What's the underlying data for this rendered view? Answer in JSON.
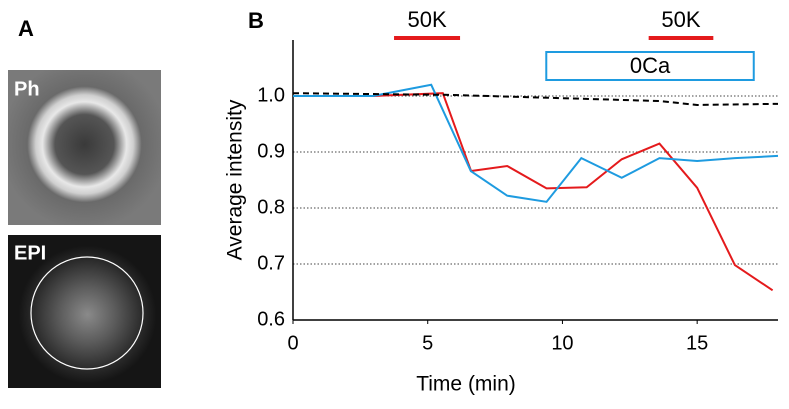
{
  "figure": {
    "panel_a": {
      "label": "A",
      "images": [
        "Ph",
        "EPI"
      ]
    }
  },
  "chart_data": {
    "type": "line",
    "panel_label": "B",
    "x_label": "Time (min)",
    "y_label": "Average intensity",
    "xlim": [
      0,
      18
    ],
    "xticks": [
      0,
      5,
      10,
      15
    ],
    "ylim": [
      0.6,
      1.1
    ],
    "yticks": [
      {
        "value": 0.6,
        "label": "0.6"
      },
      {
        "value": 0.7,
        "label": "0.7"
      },
      {
        "value": 0.8,
        "label": "0.8"
      },
      {
        "value": 0.9,
        "label": "0.9"
      },
      {
        "value": 1,
        "label": "1.0"
      }
    ],
    "grid": true,
    "series": [
      {
        "color": "#e41a1c",
        "dash": false,
        "x": [
          0,
          2.96,
          5.56,
          6.61,
          7.95,
          9.41,
          10.9,
          12.2,
          13.6,
          15.0,
          16.4,
          17.8
        ],
        "values": [
          1.0,
          1.0,
          1.005,
          0.866,
          0.875,
          0.835,
          0.837,
          0.887,
          0.915,
          0.836,
          0.698,
          0.653
        ]
      },
      {
        "color": "#1e9be0",
        "dash": false,
        "x": [
          0,
          2.96,
          5.13,
          6.6,
          7.95,
          9.41,
          10.7,
          12.2,
          13.6,
          15.0,
          16.4,
          18.0
        ],
        "values": [
          1.0,
          1.0,
          1.02,
          0.866,
          0.822,
          0.811,
          0.889,
          0.854,
          0.889,
          0.884,
          0.889,
          0.893
        ]
      },
      {
        "color": "#000000",
        "dash": true,
        "x": [
          0,
          5.8,
          13.6,
          15.0,
          18.0
        ],
        "values": [
          1.005,
          1.002,
          0.991,
          0.984,
          0.986
        ]
      }
    ],
    "annotations": [
      {
        "text": "50K",
        "kind": "bar",
        "start": 3.75,
        "end": 6.2,
        "color": "#e41a1c"
      },
      {
        "text": "50K",
        "kind": "bar",
        "start": 13.2,
        "end": 15.6,
        "color": "#e41a1c"
      },
      {
        "text": "0Ca",
        "kind": "box",
        "start": 9.4,
        "end": 17.1,
        "color": "#1e9be0"
      }
    ]
  }
}
